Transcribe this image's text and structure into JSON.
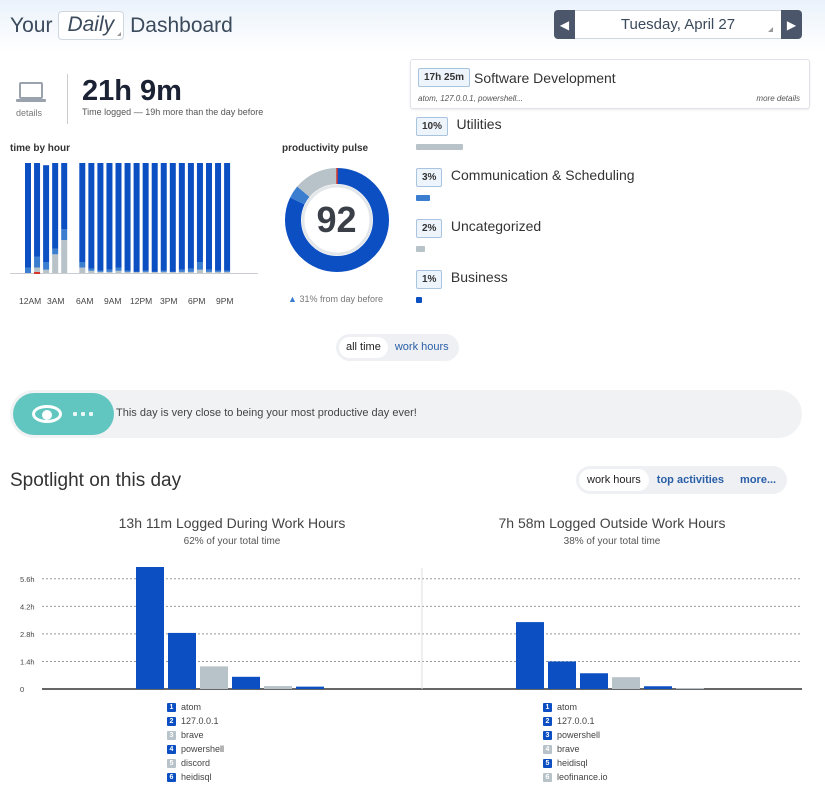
{
  "header": {
    "title_prefix": "Your",
    "range": "Daily",
    "title_suffix": "Dashboard",
    "date": "Tuesday, April 27",
    "prev_icon": "triangle-left-icon",
    "next_icon": "triangle-right-icon"
  },
  "summary": {
    "details_label": "details",
    "total": "21h 9m",
    "subtitle": "Time logged — 19h more than the day before"
  },
  "hour_chart": {
    "title": "time by hour",
    "axis_labels": [
      "12AM",
      "3AM",
      "6AM",
      "9AM",
      "12PM",
      "3PM",
      "6PM",
      "9PM"
    ]
  },
  "pulse": {
    "title": "productivity pulse",
    "value": "92",
    "change": "31% from day before"
  },
  "categories": [
    {
      "pct": "17h 25m",
      "name": "Software Development",
      "apps": "atom, 127.0.0.1, powershell...",
      "more": "more details"
    },
    {
      "pct": "10%",
      "name": "Utilities",
      "fraction": 0.1,
      "color": "#b7c3c8"
    },
    {
      "pct": "3%",
      "name": "Communication & Scheduling",
      "fraction": 0.03,
      "color": "#3b7ed0"
    },
    {
      "pct": "2%",
      "name": "Uncategorized",
      "fraction": 0.02,
      "color": "#b7c3c8"
    },
    {
      "pct": "1%",
      "name": "Business",
      "fraction": 0.01,
      "color": "#0c4fc2"
    }
  ],
  "toggle": {
    "all_time": "all time",
    "work_hours": "work hours"
  },
  "banner": {
    "text": "This day is very close to being your most productive day ever!"
  },
  "spotlight": {
    "title": "Spotlight on this day",
    "tabs": [
      "work hours",
      "top activities",
      "more..."
    ],
    "left": {
      "title": "13h 11m Logged During Work Hours",
      "subtitle": "62% of your total time",
      "legend": [
        {
          "n": "1",
          "name": "atom"
        },
        {
          "n": "2",
          "name": "127.0.0.1"
        },
        {
          "n": "3",
          "name": "brave"
        },
        {
          "n": "4",
          "name": "powershell"
        },
        {
          "n": "5",
          "name": "discord"
        },
        {
          "n": "6",
          "name": "heidisql"
        }
      ]
    },
    "right": {
      "title": "7h 58m Logged Outside Work Hours",
      "subtitle": "38% of your total time",
      "legend": [
        {
          "n": "1",
          "name": "atom"
        },
        {
          "n": "2",
          "name": "127.0.0.1"
        },
        {
          "n": "3",
          "name": "powershell"
        },
        {
          "n": "4",
          "name": "brave"
        },
        {
          "n": "5",
          "name": "heidisql"
        },
        {
          "n": "6",
          "name": "leofinance.io"
        }
      ]
    },
    "y_ticks": [
      "5.6h",
      "4.2h",
      "2.8h",
      "1.4h",
      "0"
    ]
  },
  "colors": {
    "very_productive": "#0c4fc2",
    "productive": "#3b7ed0",
    "neutral": "#b7c3c8",
    "distracting": "#e3a9a4",
    "very_distracting": "#d8352a"
  },
  "chart_data": [
    {
      "type": "bar",
      "title": "time by hour",
      "stacked": true,
      "x": [
        0,
        1,
        2,
        3,
        4,
        5,
        6,
        7,
        8,
        9,
        10,
        11,
        12,
        13,
        14,
        15,
        16,
        17,
        18,
        19,
        20,
        21,
        22,
        23
      ],
      "series": [
        {
          "name": "",
          "values": [
            0.95,
            0.85,
            0.88,
            0.78,
            0.6,
            0.0,
            0.9,
            0.96,
            0.98,
            0.97,
            0.95,
            0.98,
            0.99,
            0.98,
            0.99,
            0.98,
            0.99,
            0.97,
            0.96,
            0.9,
            0.97,
            0.98,
            0.98,
            0.0
          ]
        },
        {
          "name": "",
          "values": [
            0.05,
            0.1,
            0.07,
            0.05,
            0.1,
            0.0,
            0.05,
            0.02,
            0.01,
            0.02,
            0.03,
            0.01,
            0.0,
            0.01,
            0.0,
            0.01,
            0.0,
            0.02,
            0.03,
            0.07,
            0.02,
            0.01,
            0.01,
            0.0
          ]
        },
        {
          "name": "",
          "values": [
            0.0,
            0.05,
            0.03,
            0.17,
            0.3,
            0.0,
            0.05,
            0.02,
            0.01,
            0.01,
            0.02,
            0.01,
            0.01,
            0.01,
            0.01,
            0.01,
            0.01,
            0.01,
            0.01,
            0.03,
            0.01,
            0.01,
            0.01,
            0.0
          ]
        }
      ]
    },
    {
      "type": "pie",
      "title": "productivity pulse",
      "labels": [
        "very productive",
        "productive",
        "neutral"
      ],
      "values": [
        82,
        4,
        14
      ]
    },
    {
      "type": "bar",
      "title": "13h 11m Logged During Work Hours",
      "categories": [
        "atom",
        "127.0.0.1",
        "brave",
        "powershell",
        "discord",
        "heidisql"
      ],
      "values": [
        6.2,
        2.85,
        1.15,
        0.62,
        0.15,
        0.12
      ],
      "bar_colors": [
        "#0c4fc2",
        "#0c4fc2",
        "#b7c3c8",
        "#0c4fc2",
        "#b7c3c8",
        "#0c4fc2"
      ],
      "ylim": [
        0,
        6.2
      ]
    },
    {
      "type": "bar",
      "title": "7h 58m Logged Outside Work Hours",
      "categories": [
        "atom",
        "127.0.0.1",
        "powershell",
        "brave",
        "heidisql",
        "leofinance.io"
      ],
      "values": [
        3.4,
        1.4,
        0.8,
        0.6,
        0.14,
        0.05
      ],
      "bar_colors": [
        "#0c4fc2",
        "#0c4fc2",
        "#0c4fc2",
        "#b7c3c8",
        "#0c4fc2",
        "#b7c3c8"
      ],
      "ylim": [
        0,
        6.2
      ]
    }
  ]
}
